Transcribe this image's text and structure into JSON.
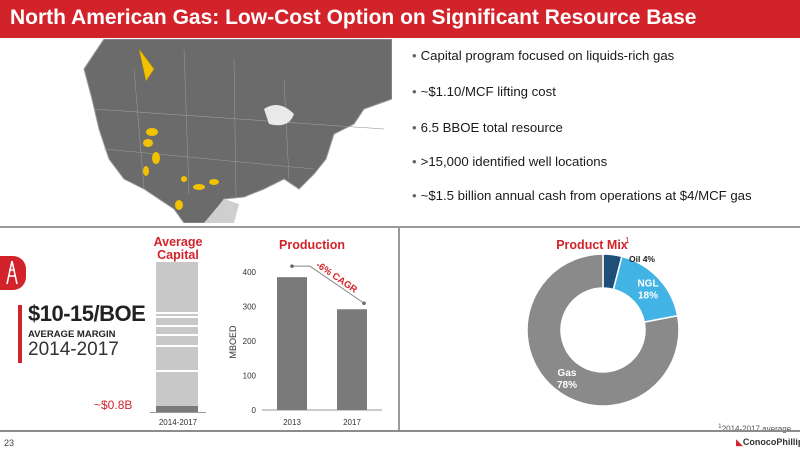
{
  "page": {
    "title": "North American Gas: Low-Cost Option on Significant Resource Base",
    "page_number": "23",
    "logo_text": "ConocoPhillips",
    "footnote_mark": "1",
    "footnote_text": "2014-2017 average."
  },
  "bullets": [
    "Capital program focused on liquids-rich gas",
    "~$1.10/MCF lifting cost",
    "6.5 BBOE total resource",
    ">15,000 identified well locations",
    "~$1.5 billion annual cash from operations at $4/MCF gas"
  ],
  "margin_callout": {
    "big": "$10-15/BOE",
    "sub": "AVERAGE MARGIN",
    "years": "2014-2017"
  },
  "colors": {
    "accent": "#d2232a",
    "bar_gray": "#7a7a7a",
    "oil": "#1f4e79",
    "ngl": "#41b4e5",
    "gas": "#8a8a8a"
  },
  "chart_data": [
    {
      "type": "bar",
      "title": "Average Capital",
      "categories": [
        "2014-2017"
      ],
      "annotation": "~$0.8B",
      "stack_segments": 6
    },
    {
      "type": "bar",
      "title": "Production",
      "ylabel": "MBOED",
      "categories": [
        "2013",
        "2017"
      ],
      "values": [
        385,
        292
      ],
      "ylim": [
        0,
        400
      ],
      "yticks": [
        "0",
        "100",
        "200",
        "300",
        "400"
      ],
      "annotation": "-6% CAGR",
      "grid": false
    },
    {
      "type": "pie",
      "title": "Product Mix",
      "title_superscript": "1",
      "labels": [
        "Oil 4%",
        "NGL 18%",
        "Gas 78%"
      ],
      "values": [
        4,
        18,
        78
      ]
    }
  ]
}
